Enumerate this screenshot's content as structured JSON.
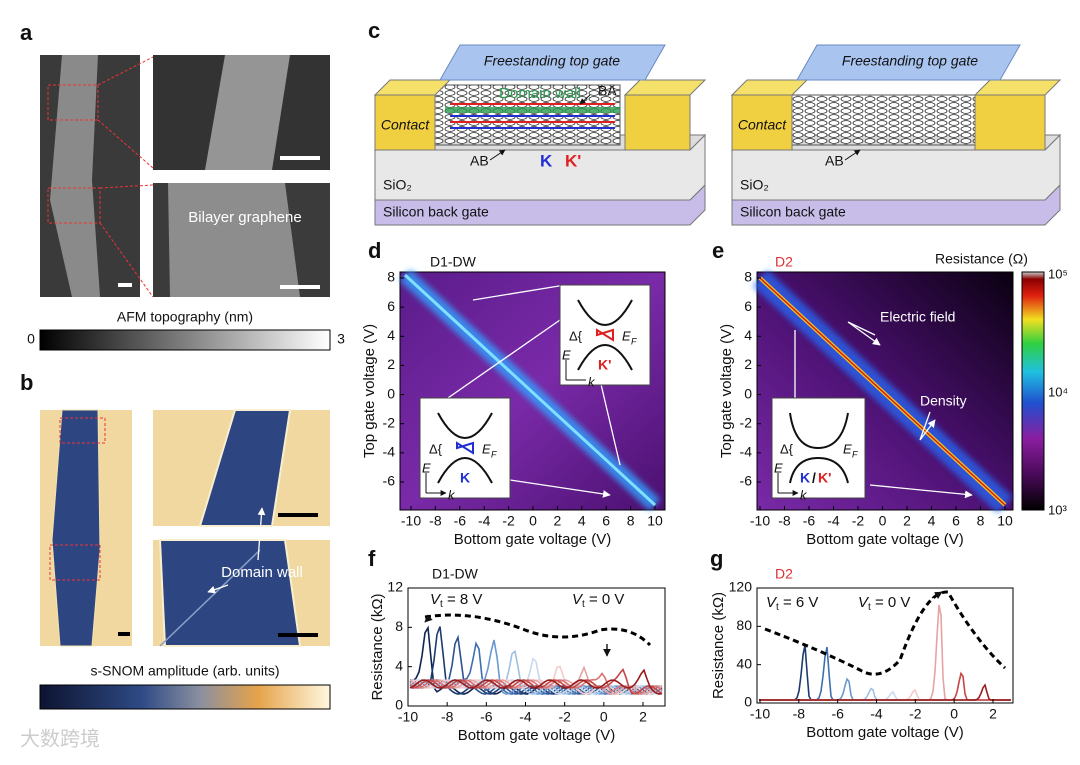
{
  "panels": {
    "a": {
      "label": "a",
      "annotation": "Bilayer graphene",
      "colorbar_title": "AFM topography (nm)",
      "colorbar_min": "0",
      "colorbar_max": "3"
    },
    "b": {
      "label": "b",
      "annotation": "Domain wall",
      "colorbar_title": "s-SNOM amplitude (arb. units)"
    },
    "c": {
      "label": "c",
      "left": {
        "top_gate": "Freestanding top gate",
        "domain_wall": "Domain wall",
        "ba": "BA",
        "contact": "Contact",
        "ab": "AB",
        "k": "K",
        "k_prime": "K'",
        "sio2": "SiO₂",
        "back_gate": "Silicon back gate"
      },
      "right": {
        "top_gate": "Freestanding top gate",
        "contact": "Contact",
        "ab": "AB",
        "sio2": "SiO₂",
        "back_gate": "Silicon back gate"
      }
    },
    "d": {
      "label": "d",
      "title": "D1-DW",
      "x_label": "Bottom gate voltage (V)",
      "y_label": "Top gate voltage (V)",
      "x_ticks": [
        "-10",
        "-8",
        "-6",
        "-4",
        "-2",
        "0",
        "2",
        "4",
        "6",
        "8",
        "10"
      ],
      "y_ticks": [
        "8",
        "6",
        "4",
        "2",
        "0",
        "-2",
        "-4",
        "-6"
      ],
      "inset_upper": {
        "delta": "Δ{",
        "e": "E",
        "f": "F",
        "axis_e": "E",
        "axis_k": "k",
        "valley": "K'"
      },
      "inset_lower": {
        "delta": "Δ{",
        "e": "E",
        "f": "F",
        "axis_e": "E",
        "axis_k": "k",
        "valley": "K"
      }
    },
    "e": {
      "label": "e",
      "title": "D2",
      "x_label": "Bottom gate voltage (V)",
      "y_label": "Top gate voltage (V)",
      "x_ticks": [
        "-10",
        "-8",
        "-6",
        "-4",
        "-2",
        "0",
        "2",
        "4",
        "6",
        "8",
        "10"
      ],
      "y_ticks": [
        "8",
        "6",
        "4",
        "2",
        "0",
        "-2",
        "-4",
        "-6"
      ],
      "annotation_field": "Electric field",
      "annotation_density": "Density",
      "colorbar_title": "Resistance (Ω)",
      "colorbar_ticks": [
        "10⁵",
        "10⁴",
        "10³"
      ],
      "inset": {
        "delta": "Δ{",
        "e": "E",
        "f": "F",
        "axis_e": "E",
        "axis_k": "k",
        "valley_k": "K",
        "slash": "/",
        "valley_kp": "K'"
      }
    },
    "f": {
      "label": "f",
      "title": "D1-DW",
      "x_label": "Bottom gate voltage (V)",
      "y_label": "Resistance (kΩ)",
      "x_ticks": [
        "-10",
        "-8",
        "-6",
        "-4",
        "-2",
        "0",
        "2"
      ],
      "y_ticks": [
        "12",
        "8",
        "4",
        "0"
      ],
      "annotation_left": {
        "v": "V",
        "sub": "t",
        "rest": " = 8 V"
      },
      "annotation_right": {
        "v": "V",
        "sub": "t",
        "rest": " = 0 V"
      }
    },
    "g": {
      "label": "g",
      "title": "D2",
      "x_label": "Bottom gate voltage (V)",
      "y_label": "Resistance (kΩ)",
      "x_ticks": [
        "-10",
        "-8",
        "-6",
        "-4",
        "-2",
        "0",
        "2"
      ],
      "y_ticks": [
        "120",
        "80",
        "40",
        "0"
      ],
      "annotation_left": {
        "v": "V",
        "sub": "t",
        "rest": " = 6 V"
      },
      "annotation_right": {
        "v": "V",
        "sub": "t",
        "rest": " = 0 V"
      }
    }
  },
  "watermark": "大数跨境"
}
